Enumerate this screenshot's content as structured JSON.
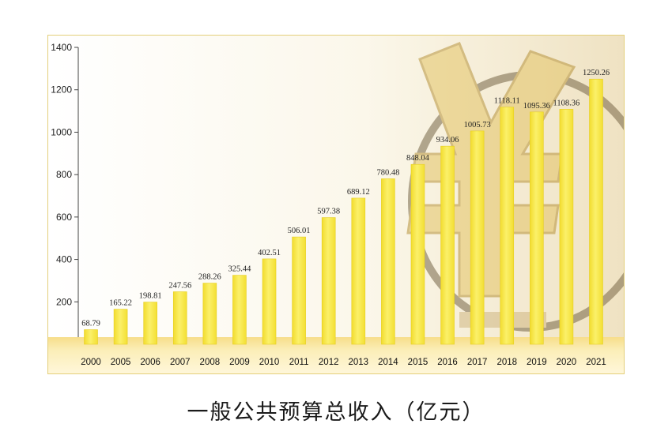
{
  "chart_data": {
    "type": "bar",
    "title": "一般公共预算总收入（亿元）",
    "xlabel": "",
    "ylabel": "",
    "ylim": [
      0,
      1400
    ],
    "yticks": [
      0,
      200,
      400,
      600,
      800,
      1000,
      1200,
      1400
    ],
    "categories": [
      "2000",
      "2005",
      "2006",
      "2007",
      "2008",
      "2009",
      "2010",
      "2011",
      "2012",
      "2013",
      "2014",
      "2015",
      "2016",
      "2017",
      "2018",
      "2019",
      "2020",
      "2021"
    ],
    "values": [
      68.79,
      165.22,
      198.81,
      247.56,
      288.26,
      325.44,
      402.51,
      506.01,
      597.38,
      689.12,
      780.48,
      848.04,
      934.06,
      1005.73,
      1118.11,
      1095.36,
      1108.36,
      1250.26
    ],
    "data_labels": [
      "68.79",
      "165.22",
      "198.81",
      "247.56",
      "288.26",
      "325.44",
      "402.51",
      "506.01",
      "597.38",
      "689.12",
      "780.48",
      "848.04",
      "934.06",
      "1005.73",
      "1118.11",
      "1095.36",
      "1108.36",
      "1250.26"
    ],
    "grid": false,
    "legend": "none",
    "bar_color": "#f7ea4a",
    "background_motif": "yuan-symbol-globe"
  }
}
